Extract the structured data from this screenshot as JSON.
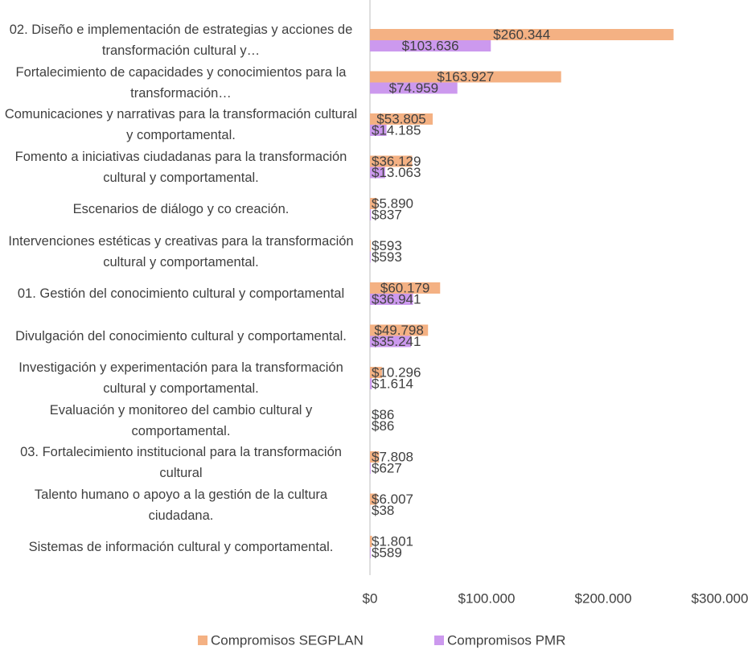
{
  "chart_data": {
    "type": "bar",
    "orientation": "horizontal",
    "categories": [
      "02. Diseño e implementación de estrategias y acciones de transformación cultural y…",
      "Fortalecimiento de capacidades y conocimientos para la transformación…",
      "Comunicaciones y narrativas para la transformación cultural y comportamental.",
      "Fomento a iniciativas ciudadanas para la transformación cultural y comportamental.",
      "Escenarios de diálogo y co creación.",
      "Intervenciones estéticas y creativas para la transformación cultural y comportamental.",
      "01. Gestión del conocimiento cultural y comportamental",
      "Divulgación del conocimiento cultural y comportamental.",
      "Investigación y experimentación para la transformación cultural y comportamental.",
      "Evaluación y monitoreo del cambio cultural y comportamental.",
      "03. Fortalecimiento institucional para la transformación cultural",
      "Talento humano o apoyo a la gestión de la cultura ciudadana.",
      "Sistemas de información cultural y comportamental."
    ],
    "series": [
      {
        "name": "Compromisos SEGPLAN",
        "color": "#f4b183",
        "values": [
          260344,
          163927,
          53805,
          36129,
          5890,
          593,
          60179,
          49798,
          10296,
          86,
          7808,
          6007,
          1801
        ],
        "value_labels": [
          "$260.344",
          "$163.927",
          "$53.805",
          "$36.129",
          "$5.890",
          "$593",
          "$60.179",
          "$49.798",
          "$10.296",
          "$86",
          "$7.808",
          "$6.007",
          "$1.801"
        ]
      },
      {
        "name": "Compromisos PMR",
        "color": "#cc99ee",
        "values": [
          103636,
          74959,
          14185,
          13063,
          837,
          593,
          36941,
          35241,
          1614,
          86,
          627,
          38,
          589
        ],
        "value_labels": [
          "$103.636",
          "$74.959",
          "$14.185",
          "$13.063",
          "$837",
          "$593",
          "$36.941",
          "$35.241",
          "$1.614",
          "$86",
          "$627",
          "$38",
          "$589"
        ]
      }
    ],
    "xlim": [
      0,
      300000
    ],
    "xticks": [
      {
        "value": 0,
        "label": "$0"
      },
      {
        "value": 100000,
        "label": "$100.000"
      },
      {
        "value": 200000,
        "label": "$200.000"
      },
      {
        "value": 300000,
        "label": "$300.000"
      }
    ],
    "legend": "bottom"
  }
}
